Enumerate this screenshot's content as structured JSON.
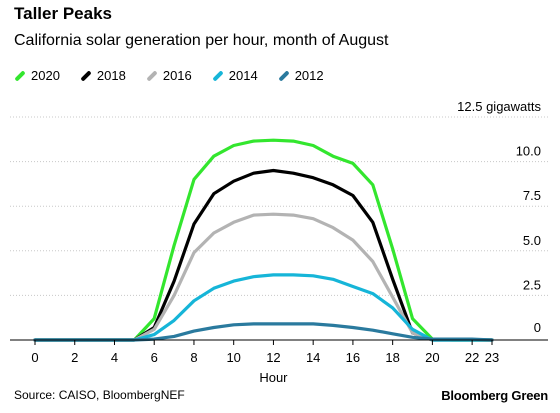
{
  "header": {
    "title": "Taller Peaks",
    "subtitle": "California solar generation per hour, month of August"
  },
  "footer": {
    "source": "Source: CAISO, BloombergNEF",
    "brand": "Bloomberg Green"
  },
  "chart_data": {
    "type": "line",
    "title": "Taller Peaks",
    "subtitle": "California solar generation per hour, month of August",
    "xlabel": "Hour",
    "ylabel": "",
    "y_unit_label": "12.5 gigawatts",
    "x": [
      0,
      1,
      2,
      3,
      4,
      5,
      6,
      7,
      8,
      9,
      10,
      11,
      12,
      13,
      14,
      15,
      16,
      17,
      18,
      19,
      20,
      21,
      22,
      23
    ],
    "x_ticks": [
      0,
      2,
      4,
      6,
      8,
      10,
      12,
      14,
      16,
      18,
      20,
      22,
      23
    ],
    "y_ticks": [
      0,
      2.5,
      5.0,
      7.5,
      10.0,
      12.5
    ],
    "y_tick_labels": [
      "0",
      "2.5",
      "5.0",
      "7.5",
      "10.0",
      "12.5 gigawatts"
    ],
    "ylim": [
      0,
      12.5
    ],
    "xlim": [
      0,
      23
    ],
    "grid": "horizontal-dotted",
    "legend": "top-left",
    "series": [
      {
        "name": "2020",
        "color": "#33e62e",
        "values": [
          0,
          0,
          0,
          0,
          0,
          0,
          1.2,
          5.3,
          9.0,
          10.3,
          10.9,
          11.15,
          11.2,
          11.15,
          10.9,
          10.3,
          9.9,
          8.7,
          5.1,
          1.2,
          0.05,
          0,
          0,
          0
        ]
      },
      {
        "name": "2018",
        "color": "#000000",
        "values": [
          0,
          0,
          0,
          0,
          0,
          0,
          0.7,
          3.3,
          6.5,
          8.2,
          8.9,
          9.35,
          9.5,
          9.35,
          9.1,
          8.7,
          8.1,
          6.6,
          3.4,
          0.4,
          0,
          0,
          0,
          0
        ]
      },
      {
        "name": "2016",
        "color": "#b3b3b3",
        "values": [
          0,
          0,
          0,
          0,
          0,
          0,
          0.6,
          2.5,
          4.9,
          6.0,
          6.6,
          7.0,
          7.05,
          7.0,
          6.8,
          6.3,
          5.6,
          4.4,
          2.4,
          0.4,
          0,
          0,
          0,
          0
        ]
      },
      {
        "name": "2014",
        "color": "#16b5d8",
        "values": [
          0,
          0,
          0,
          0,
          0,
          0,
          0.3,
          1.1,
          2.2,
          2.9,
          3.3,
          3.55,
          3.65,
          3.65,
          3.6,
          3.4,
          3.0,
          2.6,
          1.8,
          0.6,
          0,
          0,
          0,
          0
        ]
      },
      {
        "name": "2012",
        "color": "#2a7a9e",
        "values": [
          0,
          0,
          0,
          0,
          0,
          0,
          0.05,
          0.2,
          0.5,
          0.7,
          0.85,
          0.9,
          0.9,
          0.9,
          0.9,
          0.82,
          0.7,
          0.55,
          0.35,
          0.15,
          0.05,
          0.05,
          0.05,
          0
        ]
      }
    ]
  }
}
